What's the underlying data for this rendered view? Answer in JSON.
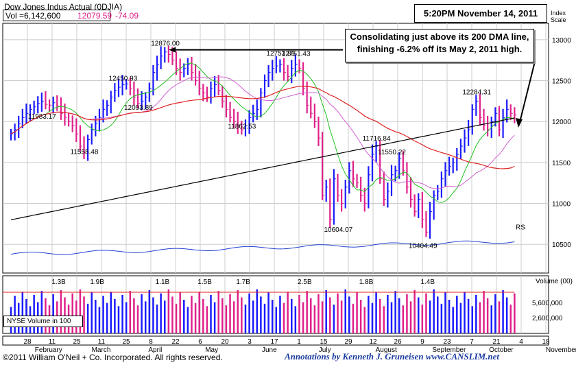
{
  "header": {
    "title": "Dow Jones Indus Actual (0DJIA)",
    "vol_label": "Vol =6,142,600",
    "price": "12079.59",
    "change": "-74.09",
    "timestamp": "5:20PM November 14, 2011",
    "index_scale": "Index\nScale"
  },
  "annotation": {
    "line1": "Consolidating just above its 200 DMA line,",
    "line2": "finishing -6.2% off its May 2, 2011 high."
  },
  "footer": {
    "copyright": "©2011 William O'Neil + Co. Incorporated. All rights reserved.",
    "credit": "Annotations by Kenneth J. Gruneisen  www.CANSLIM.net"
  },
  "volume_panel": {
    "label": "Volume (00)",
    "box_label": "NYSE Volume in 100",
    "ticks": [
      "5,600,000",
      "2,600,000"
    ]
  },
  "rs_label": "RS",
  "colors": {
    "up": "#1a1aff",
    "down": "#e0208a",
    "ma50": "#e02020",
    "ma200": "#000000",
    "ma10": "#20c020",
    "ma21": "#d060d0",
    "rs": "#2040d0",
    "price_change": "#e0208a",
    "grid": "#cccccc"
  },
  "chart_data": {
    "type": "candlestick",
    "y_ticks": [
      10500,
      11000,
      11500,
      12000,
      12500,
      13000
    ],
    "ylim": [
      10150,
      13200
    ],
    "x_tick_labels": [
      "28",
      "11",
      "25",
      "11",
      "25",
      "8",
      "22",
      "6",
      "20",
      "3",
      "17",
      "1",
      "15",
      "29",
      "12",
      "26",
      "9",
      "23",
      "7",
      "21",
      "4",
      "18"
    ],
    "month_labels": [
      "February",
      "March",
      "April",
      "May",
      "June",
      "July",
      "August",
      "September",
      "October",
      "November"
    ],
    "closes": [
      11850,
      11900,
      11980,
      12050,
      12100,
      12150,
      12180,
      12220,
      12250,
      12210,
      12200,
      12230,
      12190,
      12100,
      12050,
      12000,
      11950,
      11850,
      11700,
      11620,
      11780,
      11900,
      11980,
      12050,
      12150,
      12200,
      12300,
      12380,
      12420,
      12450,
      12460,
      12400,
      12300,
      12220,
      12250,
      12300,
      12400,
      12600,
      12700,
      12800,
      12850,
      12820,
      12750,
      12650,
      12600,
      12650,
      12700,
      12600,
      12500,
      12400,
      12350,
      12300,
      12400,
      12450,
      12380,
      12250,
      12150,
      12050,
      12000,
      11950,
      11900,
      11950,
      12050,
      12100,
      12150,
      12350,
      12500,
      12600,
      12650,
      12680,
      12700,
      12600,
      12550,
      12650,
      12700,
      12650,
      12400,
      12200,
      12100,
      12000,
      11800,
      11100,
      11200,
      10800,
      11300,
      11100,
      11000,
      11200,
      11400,
      11300,
      11250,
      11100,
      11000,
      11350,
      11600,
      11700,
      11300,
      11050,
      11150,
      11350,
      11400,
      11550,
      11400,
      11200,
      11050,
      10900,
      11050,
      10800,
      10650,
      10900,
      11100,
      11150,
      11300,
      11400,
      11450,
      11500,
      11600,
      11700,
      11800,
      11900,
      12150,
      12250,
      12050,
      11950,
      11900,
      12000,
      12100,
      11900,
      12050,
      12150,
      12100,
      12080
    ],
    "annotations": [
      {
        "label": "12876.00",
        "value": 12876
      },
      {
        "label": "12450.93",
        "value": 12450.93
      },
      {
        "label": "12093.89",
        "value": 12093.89
      },
      {
        "label": "11983.17",
        "value": 11983.17
      },
      {
        "label": "11555.48",
        "value": 11555.48
      },
      {
        "label": "11862.53",
        "value": 11862.53
      },
      {
        "label": "12753.89",
        "value": 12753.89
      },
      {
        "label": "12751.43",
        "value": 12751.43
      },
      {
        "label": "11716.84",
        "value": 11716.84
      },
      {
        "label": "11550.22",
        "value": 11550.22
      },
      {
        "label": "10604.07",
        "value": 10604.07
      },
      {
        "label": "10404.49",
        "value": 10404.49
      },
      {
        "label": "12284.31",
        "value": 12284.31
      }
    ],
    "volume_labels": [
      "1.3B",
      "1.9B",
      "1.1B",
      "1.5B",
      "1.7B",
      "2.5B",
      "1.8B",
      "1.4B"
    ]
  }
}
